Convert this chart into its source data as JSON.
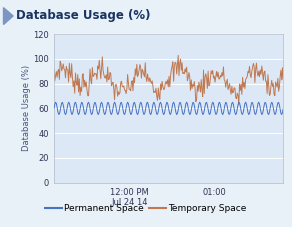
{
  "title": "Database Usage (%)",
  "ylabel": "Database Usage (%)",
  "ylim": [
    0,
    120
  ],
  "yticks": [
    0,
    20,
    40,
    60,
    80,
    100,
    120
  ],
  "bg_color": "#dce8f5",
  "outer_bg": "#e8f0f8",
  "title_bg": "#dde8f4",
  "perm_color": "#4472c4",
  "temp_color": "#c07850",
  "perm_label": "Permanent Space",
  "temp_label": "Temporary Space",
  "perm_mean": 60,
  "perm_amp": 5,
  "temp_mean": 83,
  "temp_amp": 8,
  "n_points": 300,
  "perm_freq": 35,
  "temp_freq": 6
}
